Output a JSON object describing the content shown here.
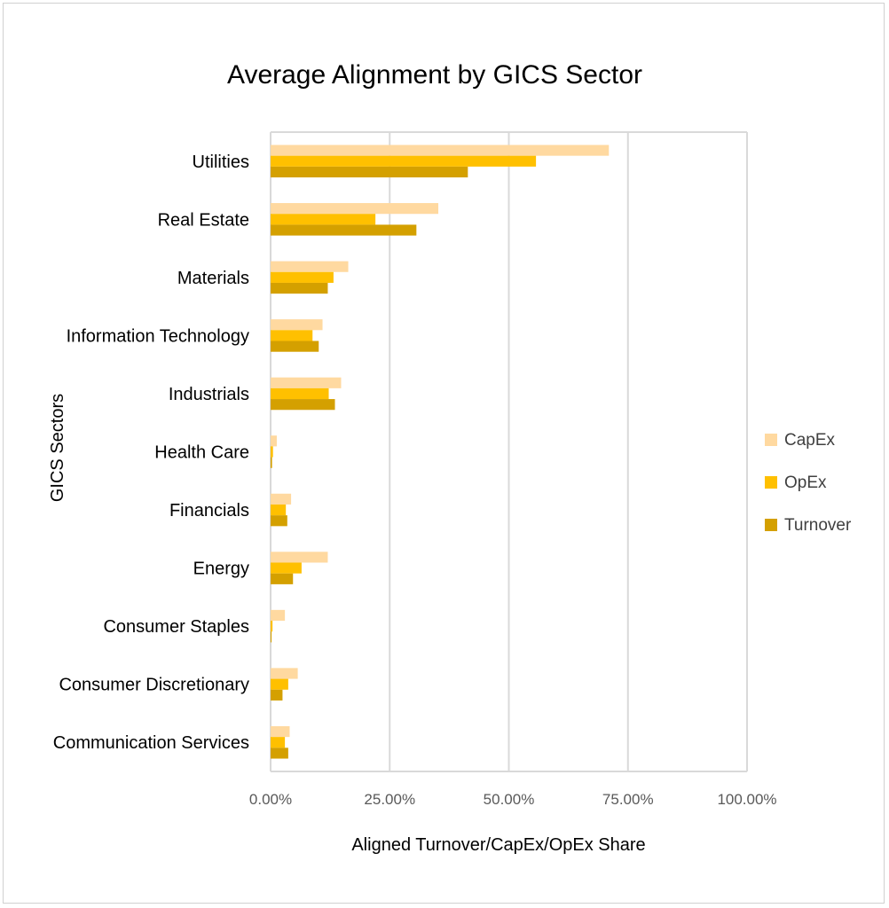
{
  "chart_data": {
    "type": "bar",
    "orientation": "horizontal",
    "title": "Average Alignment by GICS Sector",
    "xlabel": "Aligned Turnover/CapEx/OpEx Share",
    "ylabel": "GICS Sectors",
    "xlim": [
      0,
      1
    ],
    "x_ticks": [
      "0.00%",
      "25.00%",
      "50.00%",
      "75.00%",
      "100.00%"
    ],
    "grid": "vertical",
    "legend_position": "right",
    "categories": [
      "Utilities",
      "Real Estate",
      "Materials",
      "Information Technology",
      "Industrials",
      "Health Care",
      "Financials",
      "Energy",
      "Consumer Staples",
      "Consumer Discretionary",
      "Communication Services"
    ],
    "series": [
      {
        "name": "CapEx",
        "color": "#FFD9A0",
        "values": [
          0.71,
          0.352,
          0.163,
          0.109,
          0.148,
          0.013,
          0.043,
          0.12,
          0.03,
          0.057,
          0.04
        ]
      },
      {
        "name": "OpEx",
        "color": "#FFC000",
        "values": [
          0.557,
          0.22,
          0.132,
          0.088,
          0.122,
          0.005,
          0.032,
          0.065,
          0.004,
          0.037,
          0.03
        ]
      },
      {
        "name": "Turnover",
        "color": "#D4A000",
        "values": [
          0.414,
          0.306,
          0.12,
          0.101,
          0.135,
          0.003,
          0.035,
          0.047,
          0.002,
          0.025,
          0.037
        ]
      }
    ]
  }
}
